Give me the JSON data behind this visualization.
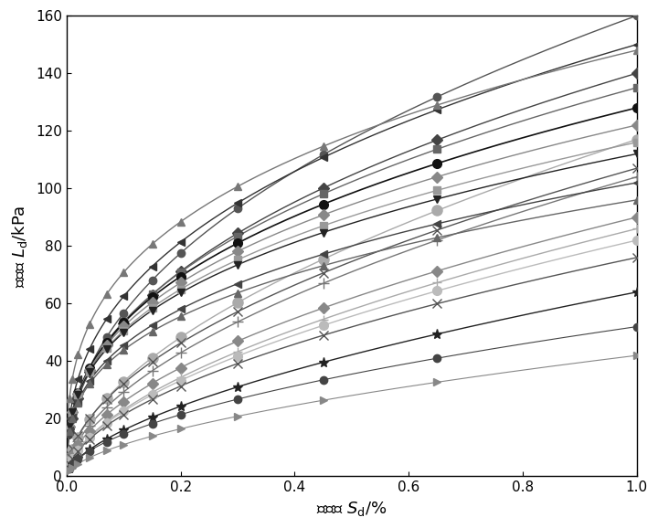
{
  "xlabel_latex": "$\\mathit{S}_{\\mathrm{d}}$",
  "ylabel_latex": "$\\mathit{L}_{\\mathrm{d}}$",
  "xlim": [
    0.0,
    1.0
  ],
  "ylim": [
    0,
    160
  ],
  "xticks": [
    0.0,
    0.2,
    0.4,
    0.6,
    0.8,
    1.0
  ],
  "yticks": [
    0,
    20,
    40,
    60,
    80,
    100,
    120,
    140,
    160
  ],
  "curves": [
    {
      "a": 160,
      "b": 0.25,
      "n": 0.45,
      "color": "#555555",
      "marker": "o",
      "ms": 6,
      "lw": 1.0
    },
    {
      "a": 150,
      "b": 0.1,
      "n": 0.38,
      "color": "#333333",
      "marker": "<",
      "ms": 6,
      "lw": 1.0
    },
    {
      "a": 148,
      "b": 0.06,
      "n": 0.32,
      "color": "#777777",
      "marker": "^",
      "ms": 6,
      "lw": 1.0
    },
    {
      "a": 140,
      "b": 0.12,
      "n": 0.42,
      "color": "#444444",
      "marker": "D",
      "ms": 6,
      "lw": 1.0
    },
    {
      "a": 135,
      "b": 0.1,
      "n": 0.4,
      "color": "#666666",
      "marker": "s",
      "ms": 6,
      "lw": 1.0
    },
    {
      "a": 128,
      "b": 0.09,
      "n": 0.38,
      "color": "#111111",
      "marker": "o",
      "ms": 7,
      "lw": 1.2
    },
    {
      "a": 122,
      "b": 0.08,
      "n": 0.37,
      "color": "#888888",
      "marker": "D",
      "ms": 6,
      "lw": 1.0
    },
    {
      "a": 117,
      "b": 0.28,
      "n": 0.55,
      "color": "#aaaaaa",
      "marker": "o",
      "ms": 8,
      "lw": 1.0
    },
    {
      "a": 116,
      "b": 0.07,
      "n": 0.36,
      "color": "#999999",
      "marker": "s",
      "ms": 6,
      "lw": 1.0
    },
    {
      "a": 112,
      "b": 0.06,
      "n": 0.35,
      "color": "#222222",
      "marker": "v",
      "ms": 6,
      "lw": 1.0
    },
    {
      "a": 107,
      "b": 0.25,
      "n": 0.52,
      "color": "#555555",
      "marker": "x",
      "ms": 7,
      "lw": 1.0
    },
    {
      "a": 104,
      "b": 0.3,
      "n": 0.55,
      "color": "#777777",
      "marker": "+",
      "ms": 8,
      "lw": 1.0
    },
    {
      "a": 102,
      "b": 0.06,
      "n": 0.35,
      "color": "#444444",
      "marker": "<",
      "ms": 6,
      "lw": 1.0
    },
    {
      "a": 96,
      "b": 0.06,
      "n": 0.34,
      "color": "#666666",
      "marker": "^",
      "ms": 6,
      "lw": 1.0
    },
    {
      "a": 90,
      "b": 0.25,
      "n": 0.54,
      "color": "#888888",
      "marker": "D",
      "ms": 6,
      "lw": 1.0
    },
    {
      "a": 86,
      "b": 0.32,
      "n": 0.57,
      "color": "#aaaaaa",
      "marker": "+",
      "ms": 7,
      "lw": 1.0
    },
    {
      "a": 82,
      "b": 0.3,
      "n": 0.56,
      "color": "#bbbbbb",
      "marker": "o",
      "ms": 7,
      "lw": 1.0
    },
    {
      "a": 76,
      "b": 0.28,
      "n": 0.55,
      "color": "#555555",
      "marker": "x",
      "ms": 7,
      "lw": 1.0
    },
    {
      "a": 64,
      "b": 0.35,
      "n": 0.6,
      "color": "#222222",
      "marker": "*",
      "ms": 8,
      "lw": 1.0
    },
    {
      "a": 52,
      "b": 0.15,
      "n": 0.55,
      "color": "#444444",
      "marker": "o",
      "ms": 6,
      "lw": 0.8
    },
    {
      "a": 42,
      "b": 0.12,
      "n": 0.58,
      "color": "#888888",
      "marker": ">",
      "ms": 6,
      "lw": 0.8
    }
  ],
  "figsize": [
    7.2,
    5.78
  ],
  "dpi": 100
}
